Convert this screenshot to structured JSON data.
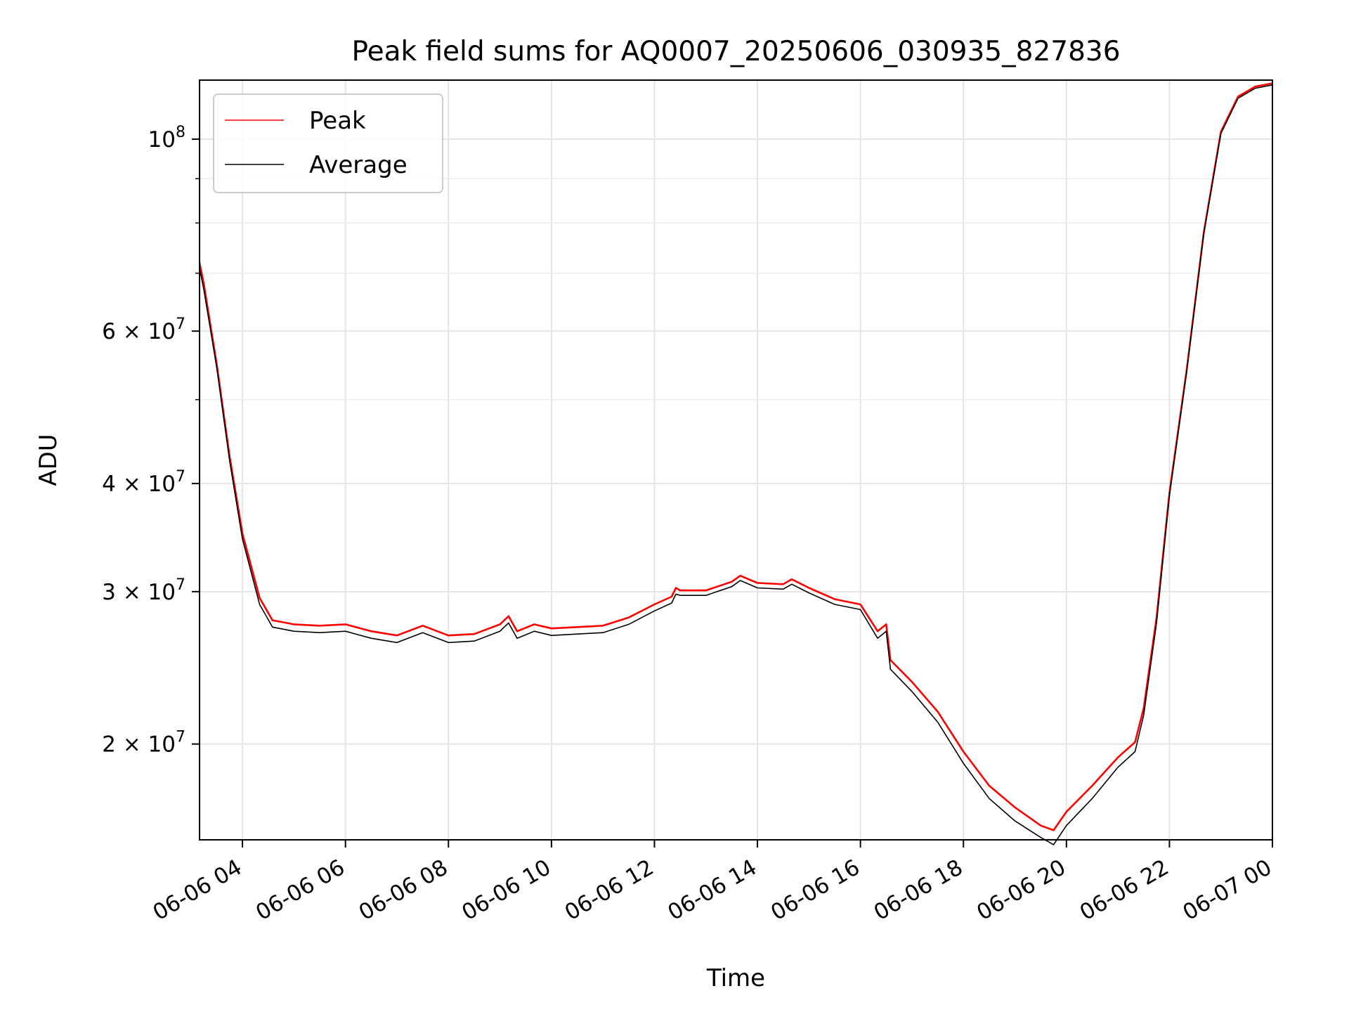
{
  "chart_data": {
    "type": "line",
    "title": "Peak field sums for AQ0007_20250606_030935_827836",
    "xlabel": "Time",
    "ylabel": "ADU",
    "yscale": "log",
    "xlim": [
      "2025-06-06 03:10",
      "2025-06-07 00:00"
    ],
    "ylim": [
      15500000,
      117000000
    ],
    "x_ticks": [
      {
        "value": "2025-06-06 04:00",
        "label": "06-06 04"
      },
      {
        "value": "2025-06-06 06:00",
        "label": "06-06 06"
      },
      {
        "value": "2025-06-06 08:00",
        "label": "06-06 08"
      },
      {
        "value": "2025-06-06 10:00",
        "label": "06-06 10"
      },
      {
        "value": "2025-06-06 12:00",
        "label": "06-06 12"
      },
      {
        "value": "2025-06-06 14:00",
        "label": "06-06 14"
      },
      {
        "value": "2025-06-06 16:00",
        "label": "06-06 16"
      },
      {
        "value": "2025-06-06 18:00",
        "label": "06-06 18"
      },
      {
        "value": "2025-06-06 20:00",
        "label": "06-06 20"
      },
      {
        "value": "2025-06-06 22:00",
        "label": "06-06 22"
      },
      {
        "value": "2025-06-07 00:00",
        "label": "06-07 00"
      }
    ],
    "y_major_ticks": [
      {
        "value": 100000000,
        "mantissa": "",
        "exponent": "8",
        "base": "10"
      },
      {
        "value": 60000000,
        "mantissa": "6",
        "exponent": "7",
        "base": "10"
      },
      {
        "value": 40000000,
        "mantissa": "4",
        "exponent": "7",
        "base": "10"
      },
      {
        "value": 30000000,
        "mantissa": "3",
        "exponent": "7",
        "base": "10"
      },
      {
        "value": 20000000,
        "mantissa": "2",
        "exponent": "7",
        "base": "10"
      }
    ],
    "y_minor_ticks": [
      90000000,
      80000000,
      70000000,
      50000000
    ],
    "grid": true,
    "legend_position": "top-left",
    "series": [
      {
        "name": "Peak",
        "color": "#ff0000",
        "x": [
          "2025-06-06 03:10",
          "2025-06-06 03:15",
          "2025-06-06 03:30",
          "2025-06-06 03:45",
          "2025-06-06 04:00",
          "2025-06-06 04:20",
          "2025-06-06 04:35",
          "2025-06-06 05:00",
          "2025-06-06 05:30",
          "2025-06-06 06:00",
          "2025-06-06 06:30",
          "2025-06-06 07:00",
          "2025-06-06 07:30",
          "2025-06-06 08:00",
          "2025-06-06 08:30",
          "2025-06-06 09:00",
          "2025-06-06 09:10",
          "2025-06-06 09:20",
          "2025-06-06 09:40",
          "2025-06-06 10:00",
          "2025-06-06 10:30",
          "2025-06-06 11:00",
          "2025-06-06 11:30",
          "2025-06-06 12:00",
          "2025-06-06 12:20",
          "2025-06-06 12:25",
          "2025-06-06 12:30",
          "2025-06-06 13:00",
          "2025-06-06 13:30",
          "2025-06-06 13:40",
          "2025-06-06 14:00",
          "2025-06-06 14:30",
          "2025-06-06 14:40",
          "2025-06-06 15:00",
          "2025-06-06 15:30",
          "2025-06-06 16:00",
          "2025-06-06 16:20",
          "2025-06-06 16:30",
          "2025-06-06 16:35",
          "2025-06-06 17:00",
          "2025-06-06 17:30",
          "2025-06-06 18:00",
          "2025-06-06 18:30",
          "2025-06-06 19:00",
          "2025-06-06 19:30",
          "2025-06-06 19:45",
          "2025-06-06 20:00",
          "2025-06-06 20:30",
          "2025-06-06 21:00",
          "2025-06-06 21:20",
          "2025-06-06 21:30",
          "2025-06-06 21:45",
          "2025-06-06 22:00",
          "2025-06-06 22:20",
          "2025-06-06 22:40",
          "2025-06-06 23:00",
          "2025-06-06 23:20",
          "2025-06-06 23:40",
          "2025-06-07 00:00"
        ],
        "y": [
          72000000,
          68000000,
          55000000,
          43000000,
          35000000,
          29500000,
          27800000,
          27500000,
          27400000,
          27500000,
          27000000,
          26700000,
          27400000,
          26700000,
          26800000,
          27500000,
          28100000,
          27000000,
          27500000,
          27200000,
          27300000,
          27400000,
          28000000,
          29000000,
          29600000,
          30300000,
          30100000,
          30100000,
          30800000,
          31300000,
          30700000,
          30600000,
          31000000,
          30300000,
          29400000,
          29000000,
          27000000,
          27500000,
          25000000,
          23600000,
          21800000,
          19600000,
          17900000,
          16900000,
          16100000,
          15900000,
          16700000,
          17900000,
          19300000,
          20100000,
          22000000,
          28000000,
          39000000,
          54000000,
          78000000,
          102000000,
          112000000,
          115000000,
          116000000
        ]
      },
      {
        "name": "Average",
        "color": "#000000",
        "x": [
          "2025-06-06 03:10",
          "2025-06-06 03:15",
          "2025-06-06 03:30",
          "2025-06-06 03:45",
          "2025-06-06 04:00",
          "2025-06-06 04:20",
          "2025-06-06 04:35",
          "2025-06-06 05:00",
          "2025-06-06 05:30",
          "2025-06-06 06:00",
          "2025-06-06 06:30",
          "2025-06-06 07:00",
          "2025-06-06 07:30",
          "2025-06-06 08:00",
          "2025-06-06 08:30",
          "2025-06-06 09:00",
          "2025-06-06 09:10",
          "2025-06-06 09:20",
          "2025-06-06 09:40",
          "2025-06-06 10:00",
          "2025-06-06 10:30",
          "2025-06-06 11:00",
          "2025-06-06 11:30",
          "2025-06-06 12:00",
          "2025-06-06 12:20",
          "2025-06-06 12:25",
          "2025-06-06 12:30",
          "2025-06-06 13:00",
          "2025-06-06 13:30",
          "2025-06-06 13:40",
          "2025-06-06 14:00",
          "2025-06-06 14:30",
          "2025-06-06 14:40",
          "2025-06-06 15:00",
          "2025-06-06 15:30",
          "2025-06-06 16:00",
          "2025-06-06 16:20",
          "2025-06-06 16:30",
          "2025-06-06 16:35",
          "2025-06-06 17:00",
          "2025-06-06 17:30",
          "2025-06-06 18:00",
          "2025-06-06 18:30",
          "2025-06-06 19:00",
          "2025-06-06 19:30",
          "2025-06-06 19:45",
          "2025-06-06 20:00",
          "2025-06-06 20:30",
          "2025-06-06 21:00",
          "2025-06-06 21:20",
          "2025-06-06 21:30",
          "2025-06-06 21:45",
          "2025-06-06 22:00",
          "2025-06-06 22:20",
          "2025-06-06 22:40",
          "2025-06-06 23:00",
          "2025-06-06 23:20",
          "2025-06-06 23:40",
          "2025-06-07 00:00"
        ],
        "y": [
          71000000,
          67000000,
          54500000,
          42500000,
          34500000,
          29000000,
          27300000,
          27000000,
          26900000,
          27000000,
          26500000,
          26200000,
          26900000,
          26200000,
          26300000,
          27000000,
          27600000,
          26500000,
          27000000,
          26700000,
          26800000,
          26900000,
          27500000,
          28500000,
          29100000,
          29800000,
          29700000,
          29700000,
          30400000,
          30900000,
          30300000,
          30200000,
          30600000,
          29900000,
          29000000,
          28600000,
          26500000,
          27000000,
          24400000,
          23000000,
          21200000,
          19000000,
          17300000,
          16300000,
          15600000,
          15300000,
          16100000,
          17300000,
          18800000,
          19600000,
          21600000,
          27600000,
          38700000,
          53700000,
          77700000,
          101500000,
          111500000,
          114500000,
          115500000
        ]
      }
    ]
  }
}
